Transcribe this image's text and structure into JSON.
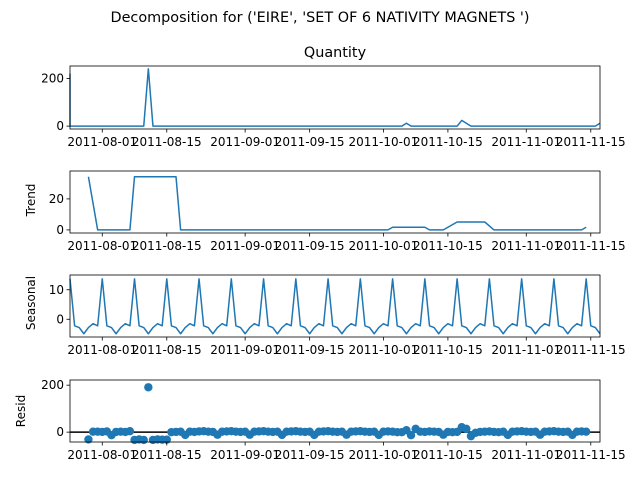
{
  "suptitle": "Decomposition for ('EIRE', 'SET OF 6 NATIVITY MAGNETS ')",
  "x_ticks": [
    "2011-08-01",
    "2011-08-15",
    "2011-09-01",
    "2011-09-15",
    "2011-10-01",
    "2011-10-15",
    "2011-11-01",
    "2011-11-15"
  ],
  "colors": {
    "series": "#1f77b4",
    "axis": "#000000"
  },
  "chart_data": [
    {
      "type": "line",
      "title": "Quantity",
      "ylabel": "",
      "x_start": "2011-07-25",
      "x_end": "2011-11-17",
      "ylim": [
        -12,
        252
      ],
      "yticks": [
        0,
        200
      ],
      "points": [
        [
          "2011-07-25",
          220
        ],
        [
          "2011-07-25",
          0
        ],
        [
          "2011-08-10",
          0
        ],
        [
          "2011-08-11",
          240
        ],
        [
          "2011-08-12",
          0
        ],
        [
          "2011-10-05",
          0
        ],
        [
          "2011-10-06",
          12
        ],
        [
          "2011-10-07",
          0
        ],
        [
          "2011-10-17",
          0
        ],
        [
          "2011-10-18",
          24
        ],
        [
          "2011-10-20",
          0
        ],
        [
          "2011-11-16",
          0
        ],
        [
          "2011-11-17",
          12
        ]
      ]
    },
    {
      "type": "line",
      "title": "",
      "ylabel": "Trend",
      "x_start": "2011-07-25",
      "x_end": "2011-11-17",
      "ylim": [
        -2,
        38
      ],
      "yticks": [
        0,
        20
      ],
      "points": [
        [
          "2011-07-29",
          34.3
        ],
        [
          "2011-07-31",
          0
        ],
        [
          "2011-08-07",
          0
        ],
        [
          "2011-08-08",
          34.3
        ],
        [
          "2011-08-17",
          34.3
        ],
        [
          "2011-08-18",
          0
        ],
        [
          "2011-10-02",
          0
        ],
        [
          "2011-10-03",
          1.7
        ],
        [
          "2011-10-10",
          1.7
        ],
        [
          "2011-10-11",
          0
        ],
        [
          "2011-10-14",
          0
        ],
        [
          "2011-10-16",
          3.4
        ],
        [
          "2011-10-17",
          5.1
        ],
        [
          "2011-10-23",
          5.1
        ],
        [
          "2011-10-25",
          0
        ],
        [
          "2011-11-13",
          0
        ],
        [
          "2011-11-14",
          1.7
        ]
      ]
    },
    {
      "type": "line",
      "title": "",
      "ylabel": "Seasonal",
      "x_start": "2011-07-25",
      "x_end": "2011-11-17",
      "ylim": [
        -6,
        15
      ],
      "yticks": [
        0,
        10
      ],
      "period_days": 7,
      "weekly_pattern": [
        13.7,
        -2.2,
        -2.8,
        -4.9,
        -2.8,
        -1.5,
        -2.2
      ]
    },
    {
      "type": "scatter",
      "title": "",
      "ylabel": "Resid",
      "x_start": "2011-07-25",
      "x_end": "2011-11-17",
      "ylim": [
        -42,
        222
      ],
      "yticks": [
        0,
        200
      ],
      "zero_line": true,
      "points": [
        [
          "2011-07-29",
          -31
        ],
        [
          "2011-07-30",
          2
        ],
        [
          "2011-07-31",
          2
        ],
        [
          "2011-08-01",
          1
        ],
        [
          "2011-08-02",
          3
        ],
        [
          "2011-08-03",
          -13
        ],
        [
          "2011-08-04",
          1
        ],
        [
          "2011-08-05",
          2
        ],
        [
          "2011-08-06",
          1
        ],
        [
          "2011-08-07",
          4
        ],
        [
          "2011-08-08",
          -33
        ],
        [
          "2011-08-09",
          -31
        ],
        [
          "2011-08-10",
          -33
        ],
        [
          "2011-08-11",
          191
        ],
        [
          "2011-08-12",
          -33
        ],
        [
          "2011-08-13",
          -31
        ],
        [
          "2011-08-14",
          -32
        ],
        [
          "2011-08-15",
          -32
        ],
        [
          "2011-08-16",
          0
        ],
        [
          "2011-08-17",
          1
        ],
        [
          "2011-08-18",
          2
        ],
        [
          "2011-08-19",
          -12
        ],
        [
          "2011-08-20",
          2
        ],
        [
          "2011-08-21",
          1
        ],
        [
          "2011-08-22",
          3
        ],
        [
          "2011-08-23",
          4
        ],
        [
          "2011-08-24",
          2
        ],
        [
          "2011-08-25",
          1
        ],
        [
          "2011-08-26",
          -11
        ],
        [
          "2011-08-27",
          2
        ],
        [
          "2011-08-28",
          3
        ],
        [
          "2011-08-29",
          4
        ],
        [
          "2011-08-30",
          2
        ],
        [
          "2011-08-31",
          1
        ],
        [
          "2011-09-01",
          2
        ],
        [
          "2011-09-02",
          -11
        ],
        [
          "2011-09-03",
          2
        ],
        [
          "2011-09-04",
          3
        ],
        [
          "2011-09-05",
          4
        ],
        [
          "2011-09-06",
          2
        ],
        [
          "2011-09-07",
          1
        ],
        [
          "2011-09-08",
          2
        ],
        [
          "2011-09-09",
          -12
        ],
        [
          "2011-09-10",
          2
        ],
        [
          "2011-09-11",
          3
        ],
        [
          "2011-09-12",
          4
        ],
        [
          "2011-09-13",
          2
        ],
        [
          "2011-09-14",
          1
        ],
        [
          "2011-09-15",
          2
        ],
        [
          "2011-09-16",
          -12
        ],
        [
          "2011-09-17",
          2
        ],
        [
          "2011-09-18",
          3
        ],
        [
          "2011-09-19",
          4
        ],
        [
          "2011-09-20",
          2
        ],
        [
          "2011-09-21",
          1
        ],
        [
          "2011-09-22",
          2
        ],
        [
          "2011-09-23",
          -11
        ],
        [
          "2011-09-24",
          2
        ],
        [
          "2011-09-25",
          3
        ],
        [
          "2011-09-26",
          4
        ],
        [
          "2011-09-27",
          2
        ],
        [
          "2011-09-28",
          1
        ],
        [
          "2011-09-29",
          2
        ],
        [
          "2011-09-30",
          -12
        ],
        [
          "2011-10-01",
          2
        ],
        [
          "2011-10-02",
          3
        ],
        [
          "2011-10-03",
          2
        ],
        [
          "2011-10-04",
          0
        ],
        [
          "2011-10-05",
          0
        ],
        [
          "2011-10-06",
          8
        ],
        [
          "2011-10-07",
          -13
        ],
        [
          "2011-10-08",
          14
        ],
        [
          "2011-10-09",
          2
        ],
        [
          "2011-10-10",
          1
        ],
        [
          "2011-10-11",
          3
        ],
        [
          "2011-10-12",
          2
        ],
        [
          "2011-10-13",
          1
        ],
        [
          "2011-10-14",
          -11
        ],
        [
          "2011-10-15",
          1
        ],
        [
          "2011-10-16",
          0
        ],
        [
          "2011-10-17",
          1
        ],
        [
          "2011-10-18",
          21
        ],
        [
          "2011-10-19",
          14
        ],
        [
          "2011-10-20",
          -17
        ],
        [
          "2011-10-21",
          -3
        ],
        [
          "2011-10-22",
          1
        ],
        [
          "2011-10-23",
          2
        ],
        [
          "2011-10-24",
          3
        ],
        [
          "2011-10-25",
          1
        ],
        [
          "2011-10-26",
          0
        ],
        [
          "2011-10-27",
          2
        ],
        [
          "2011-10-28",
          -12
        ],
        [
          "2011-10-29",
          2
        ],
        [
          "2011-10-30",
          3
        ],
        [
          "2011-10-31",
          4
        ],
        [
          "2011-11-01",
          2
        ],
        [
          "2011-11-02",
          1
        ],
        [
          "2011-11-03",
          2
        ],
        [
          "2011-11-04",
          -11
        ],
        [
          "2011-11-05",
          2
        ],
        [
          "2011-11-06",
          3
        ],
        [
          "2011-11-07",
          4
        ],
        [
          "2011-11-08",
          2
        ],
        [
          "2011-11-09",
          1
        ],
        [
          "2011-11-10",
          2
        ],
        [
          "2011-11-11",
          -12
        ],
        [
          "2011-11-12",
          2
        ],
        [
          "2011-11-13",
          3
        ],
        [
          "2011-11-14",
          2
        ]
      ]
    }
  ]
}
